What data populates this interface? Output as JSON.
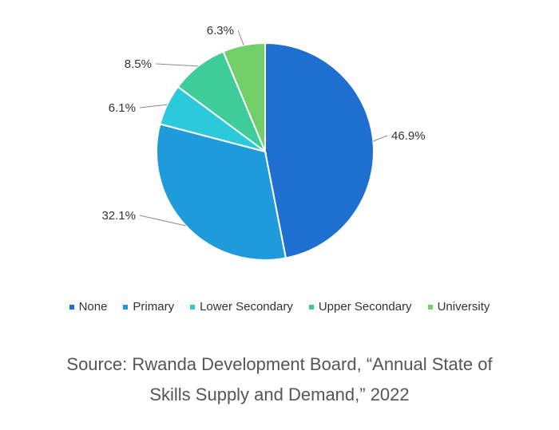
{
  "chart_data": {
    "type": "pie",
    "categories": [
      "None",
      "Primary",
      "Lower Secondary",
      "Upper Secondary",
      "University"
    ],
    "values": [
      46.9,
      32.1,
      6.1,
      8.5,
      6.3
    ],
    "labels": [
      "46.9%",
      "32.1%",
      "6.1%",
      "8.5%",
      "6.3%"
    ],
    "colors": [
      "#1f6fd1",
      "#1f9bdc",
      "#2cc8dc",
      "#3dcc9a",
      "#72cf6a"
    ],
    "legend_position": "bottom"
  },
  "source": {
    "line1": "Source: Rwanda Development Board, “Annual State of",
    "line2": "Skills Supply and Demand,” 2022"
  }
}
